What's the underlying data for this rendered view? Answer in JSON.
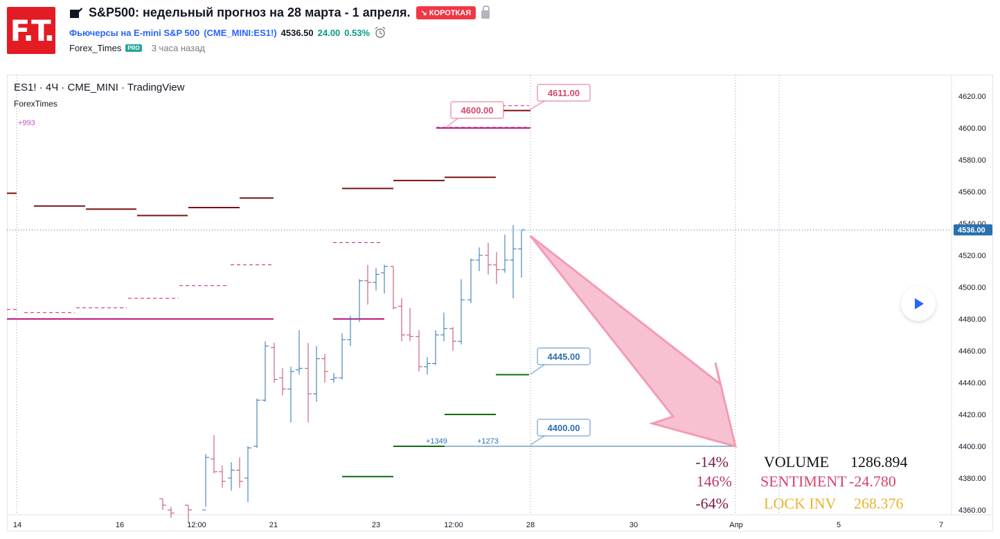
{
  "header": {
    "logo_text": "F.T.",
    "title": "S&P500: недельный прогноз на 28 марта - 1 апреля.",
    "badge": "↘ КОРОТКАЯ",
    "symbol_name": "Фьючерсы на E-mini S&P 500",
    "symbol_code": "(CME_MINI:ES1!)",
    "price": "4536.50",
    "change": "24.00",
    "change_pct": "0.53%",
    "author": "Forex_Times",
    "author_badge": "PRO",
    "published": "3 часа назад"
  },
  "chart": {
    "legend": "ES1! · 4Ч · CME_MINI · TradingView",
    "indicator": "ForexTimes",
    "indicator_value": "+993",
    "last_price_label": "4536.00",
    "y_ticks": [
      "4620.00",
      "4600.00",
      "4580.00",
      "4560.00",
      "4540.00",
      "4520.00",
      "4500.00",
      "4480.00",
      "4460.00",
      "4440.00",
      "4420.00",
      "4400.00",
      "4380.00",
      "4360.00"
    ],
    "x_ticks": [
      "14",
      "16",
      "12:00",
      "21",
      "23",
      "12:00",
      "28",
      "30",
      "Апр",
      "5",
      "7"
    ],
    "callouts": [
      "4611.00",
      "4600.00",
      "4445.00",
      "4400.00"
    ],
    "small_labels": [
      "+1349",
      "+1273"
    ],
    "stats": {
      "volume_pct": "-14%",
      "volume_label": "VOLUME",
      "volume_value": "1286.894",
      "sentiment_pct": "146%",
      "sentiment_label": "SENTIMENT",
      "sentiment_value": "-24.780",
      "lock_pct": "-64%",
      "lock_label": "LOCK INV",
      "lock_value": "268.376"
    },
    "colors": {
      "up": "#2a6fb0",
      "down": "#c2456b",
      "resistance": "#7b1010",
      "support": "#0f6b14",
      "pivot": "#c2187f",
      "arrow": "#f7b6ca",
      "callout_red": "#d9446b",
      "callout_blue": "#2a6fb0",
      "vol": "#111111",
      "sent": "#d9446b",
      "lock": "#e8b331"
    }
  }
}
